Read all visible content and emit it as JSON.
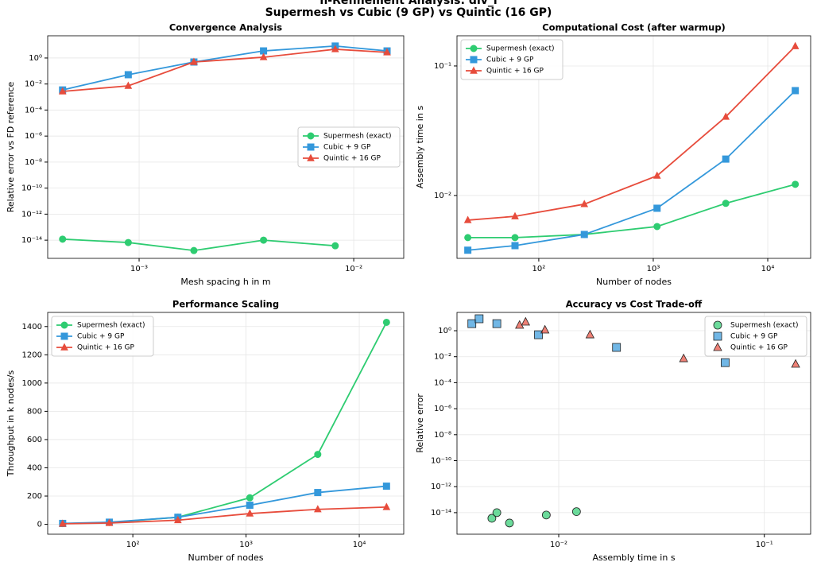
{
  "figure_title": "h-Refinement Analysis: div_i",
  "figure_subtitle": "Supermesh vs Cubic (9 GP) vs Quintic (16 GP)",
  "chart_data": [
    {
      "type": "line",
      "title": "Convergence Analysis",
      "xlabel": "Mesh spacing h in m",
      "ylabel": "Relative error vs FD reference",
      "xlog": true,
      "ylog": true,
      "grid": true,
      "legend": "center right",
      "x": [
        0.00044,
        0.00089,
        0.0018,
        0.0038,
        0.0082,
        0.0143
      ],
      "xlim": [
        0.000375,
        0.0171
      ],
      "ylim": [
        4e-16,
        51
      ],
      "xticks": [
        {
          "value": 0.001,
          "label": "10⁻³"
        },
        {
          "value": 0.01,
          "label": "10⁻²"
        }
      ],
      "yticks": [
        {
          "value": 1e-14,
          "label": "10⁻¹⁴"
        },
        {
          "value": 1e-12,
          "label": "10⁻¹²"
        },
        {
          "value": 1e-10,
          "label": "10⁻¹⁰"
        },
        {
          "value": 1e-08,
          "label": "10⁻⁸"
        },
        {
          "value": 1e-06,
          "label": "10⁻⁶"
        },
        {
          "value": 0.0001,
          "label": "10⁻⁴"
        },
        {
          "value": 0.01,
          "label": "10⁻²"
        },
        {
          "value": 1,
          "label": "10⁰"
        }
      ],
      "series": [
        {
          "name": "Supermesh (exact)",
          "color": "#2ecc71",
          "marker": "circle",
          "values": [
            1.2e-14,
            6.6e-15,
            1.6e-15,
            1e-14,
            3.7e-15,
            null
          ]
        },
        {
          "name": "Cubic + 9 GP",
          "color": "#3498db",
          "marker": "square",
          "values": [
            0.0035,
            0.052,
            0.49,
            3.5,
            8.3,
            3.5
          ]
        },
        {
          "name": "Quintic + 16 GP",
          "color": "#e74c3c",
          "marker": "triangle",
          "values": [
            0.0027,
            0.0072,
            0.49,
            1.15,
            4.7,
            2.7
          ]
        }
      ]
    },
    {
      "type": "line",
      "title": "Computational Cost (after warmup)",
      "xlabel": "Number of nodes",
      "ylabel": "Assembly time in s",
      "xlog": true,
      "ylog": true,
      "grid": true,
      "legend": "upper left",
      "x": [
        24,
        62,
        250,
        1080,
        4300,
        17400
      ],
      "xlim": [
        19.3,
        23700
      ],
      "ylim": [
        0.00327,
        0.171
      ],
      "xticks": [
        {
          "value": 100,
          "label": "10²"
        },
        {
          "value": 1000,
          "label": "10³"
        },
        {
          "value": 10000,
          "label": "10⁴"
        }
      ],
      "yticks": [
        {
          "value": 0.01,
          "label": "10⁻²"
        },
        {
          "value": 0.1,
          "label": "10⁻¹"
        }
      ],
      "series": [
        {
          "name": "Supermesh (exact)",
          "color": "#2ecc71",
          "marker": "circle",
          "values": [
            0.00473,
            0.00473,
            0.005,
            0.00576,
            0.0087,
            0.0122
          ]
        },
        {
          "name": "Cubic + 9 GP",
          "color": "#3498db",
          "marker": "square",
          "values": [
            0.00378,
            0.0041,
            0.005,
            0.00797,
            0.0191,
            0.0645
          ]
        },
        {
          "name": "Quintic + 16 GP",
          "color": "#e74c3c",
          "marker": "triangle",
          "values": [
            0.00645,
            0.0069,
            0.00857,
            0.0142,
            0.0405,
            0.142
          ]
        }
      ]
    },
    {
      "type": "line",
      "title": "Performance Scaling",
      "xlabel": "Number of nodes",
      "ylabel": "Throughput in k nodes/s",
      "xlog": true,
      "ylog": false,
      "grid": true,
      "legend": "upper left",
      "x": [
        24,
        62,
        250,
        1080,
        4300,
        17400
      ],
      "xlim": [
        17.7,
        24700
      ],
      "ylim": [
        -70,
        1500
      ],
      "xticks": [
        {
          "value": 100,
          "label": "10²"
        },
        {
          "value": 1000,
          "label": "10³"
        },
        {
          "value": 10000,
          "label": "10⁴"
        }
      ],
      "yticks": [
        0,
        200,
        400,
        600,
        800,
        1000,
        1200,
        1400
      ],
      "series": [
        {
          "name": "Supermesh (exact)",
          "color": "#2ecc71",
          "marker": "circle",
          "values": [
            5,
            13,
            50,
            188,
            495,
            1430
          ]
        },
        {
          "name": "Cubic + 9 GP",
          "color": "#3498db",
          "marker": "square",
          "values": [
            6.3,
            15,
            50,
            135,
            225,
            270
          ]
        },
        {
          "name": "Quintic + 16 GP",
          "color": "#e74c3c",
          "marker": "triangle",
          "values": [
            3.7,
            9,
            29,
            76,
            106,
            122
          ]
        }
      ]
    },
    {
      "type": "scatter",
      "title": "Accuracy vs Cost Trade-off",
      "xlabel": "Assembly time in s",
      "ylabel": "Relative error",
      "xlog": true,
      "ylog": true,
      "grid": true,
      "legend": "upper right",
      "xlim": [
        0.0032,
        0.168
      ],
      "ylim": [
        2.2e-16,
        25.6
      ],
      "xticks": [
        {
          "value": 0.01,
          "label": "10⁻²"
        },
        {
          "value": 0.1,
          "label": "10⁻¹"
        }
      ],
      "yticks": [
        {
          "value": 1e-14,
          "label": "10⁻¹⁴"
        },
        {
          "value": 1e-12,
          "label": "10⁻¹²"
        },
        {
          "value": 1e-10,
          "label": "10⁻¹⁰"
        },
        {
          "value": 1e-08,
          "label": "10⁻⁸"
        },
        {
          "value": 1e-06,
          "label": "10⁻⁶"
        },
        {
          "value": 0.0001,
          "label": "10⁻⁴"
        },
        {
          "value": 0.01,
          "label": "10⁻²"
        },
        {
          "value": 1,
          "label": "10⁰"
        }
      ],
      "series": [
        {
          "name": "Supermesh (exact)",
          "color": "#2ecc71",
          "marker": "circle",
          "x": [
            0.00473,
            0.005,
            0.00576,
            0.0087,
            0.0122
          ],
          "values": [
            3.7e-15,
            1e-14,
            1.6e-15,
            6.6e-15,
            1.2e-14
          ]
        },
        {
          "name": "Cubic + 9 GP",
          "color": "#3498db",
          "marker": "square",
          "x": [
            0.00378,
            0.0041,
            0.005,
            0.00797,
            0.0191,
            0.0645
          ],
          "values": [
            3.5,
            8.3,
            3.5,
            0.49,
            0.052,
            0.0035
          ]
        },
        {
          "name": "Quintic + 16 GP",
          "color": "#e74c3c",
          "marker": "triangle",
          "x": [
            0.00645,
            0.0069,
            0.00857,
            0.0142,
            0.0405,
            0.142
          ],
          "values": [
            2.7,
            4.7,
            1.15,
            0.49,
            0.0072,
            0.0027
          ]
        }
      ]
    }
  ]
}
